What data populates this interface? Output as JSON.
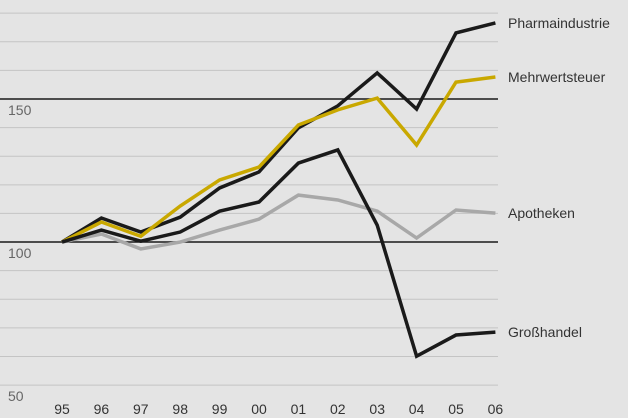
{
  "chart_data": {
    "type": "line",
    "categories": [
      "95",
      "96",
      "97",
      "98",
      "99",
      "00",
      "01",
      "02",
      "03",
      "04",
      "05",
      "06"
    ],
    "series": [
      {
        "name": "Pharmaindustrie",
        "color": "#1a1a1a",
        "values": [
          100,
          108.4,
          103.5,
          108.7,
          118.9,
          124.5,
          139.9,
          147.6,
          159.1,
          146.5,
          173.1,
          176.6
        ]
      },
      {
        "name": "Mehrwertsteuer",
        "color": "#c9a800",
        "values": [
          100,
          107,
          102,
          112.6,
          121.7,
          126.2,
          140.9,
          146.2,
          150.3,
          133.9,
          155.9,
          157.7
        ]
      },
      {
        "name": "Apotheken",
        "color": "#a8a8a8",
        "values": [
          100,
          102.8,
          97.6,
          100,
          104.2,
          108,
          116.4,
          114.7,
          110.8,
          101.4,
          111.2,
          110.1
        ]
      },
      {
        "name": "Großhandel",
        "color": "#1a1a1a",
        "values": [
          100,
          104.2,
          100.3,
          103.5,
          110.8,
          114,
          127.6,
          132.2,
          105.9,
          60.1,
          67.5,
          68.5
        ]
      }
    ],
    "ylim": [
      38.5,
      184.6
    ],
    "yticks": [
      50,
      100,
      150
    ],
    "minor_yticks": [
      60,
      70,
      80,
      90,
      110,
      120,
      130,
      140,
      160,
      170,
      180
    ],
    "grid": true
  }
}
